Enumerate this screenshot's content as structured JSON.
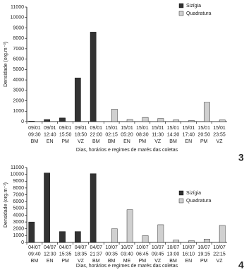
{
  "chart_data": [
    {
      "type": "bar",
      "y_label": "Densidade (org.m⁻³)",
      "x_label": "Dias, horários e regimes de marés das coletas",
      "annotation": "3",
      "categories": [
        [
          "09/01",
          "09:30",
          "BM"
        ],
        [
          "09/01",
          "12:40",
          "EN"
        ],
        [
          "09/01",
          "15:50",
          "PM"
        ],
        [
          "09/01",
          "18:50",
          "VZ"
        ],
        [
          "09/01",
          "22:00",
          "BM"
        ],
        [
          "15/01",
          "02:15",
          "BM"
        ],
        [
          "15/01",
          "05:20",
          "EN"
        ],
        [
          "15/01",
          "08:30",
          "PM"
        ],
        [
          "15/01",
          "11:30",
          "VZ"
        ],
        [
          "15/01",
          "14:30",
          "BM"
        ],
        [
          "15/01",
          "17:40",
          "EN"
        ],
        [
          "15/01",
          "20:50",
          "PM"
        ],
        [
          "15/01",
          "23:55",
          "VZ"
        ]
      ],
      "series": [
        {
          "name": "Sizígia",
          "color": "#333333",
          "values": [
            50,
            200,
            350,
            4200,
            8600,
            null,
            null,
            null,
            null,
            null,
            null,
            null,
            null
          ]
        },
        {
          "name": "Quadratura",
          "color": "#d0d0d0",
          "values": [
            null,
            null,
            null,
            null,
            null,
            1200,
            200,
            400,
            300,
            150,
            100,
            1850,
            150
          ]
        }
      ],
      "ylim": [
        0,
        11000
      ],
      "yticks": [
        0,
        1000,
        2000,
        3000,
        4000,
        5000,
        6000,
        7000,
        8000,
        9000,
        10000,
        11000
      ],
      "legend": "top-right"
    },
    {
      "type": "bar",
      "y_label": "Densidade (org.m⁻³)",
      "x_label": "Dias, horários e regimes de marés das coletas",
      "annotation": "4",
      "categories": [
        [
          "04/07",
          "09:40",
          "BM"
        ],
        [
          "04/07",
          "12:30",
          "EN"
        ],
        [
          "04/07",
          "15:35",
          "PM"
        ],
        [
          "04/07",
          "18:35",
          "VZ"
        ],
        [
          "04/07",
          "21:37",
          "BM"
        ],
        [
          "10/07",
          "00:35",
          "BM"
        ],
        [
          "10/07",
          "03:40",
          "ME"
        ],
        [
          "10/07",
          "06:45",
          "PM"
        ],
        [
          "10/07",
          "09:45",
          "VZ"
        ],
        [
          "10/07",
          "13:00",
          "BM"
        ],
        [
          "10/07",
          "16:10",
          "EN"
        ],
        [
          "10/07",
          "19:15",
          "PM"
        ],
        [
          "10/07",
          "22:15",
          "VZ"
        ]
      ],
      "series": [
        {
          "name": "Sizígia",
          "color": "#333333",
          "values": [
            3000,
            10200,
            1600,
            1600,
            10100,
            null,
            null,
            null,
            null,
            null,
            null,
            null,
            null
          ]
        },
        {
          "name": "Quadratura",
          "color": "#d0d0d0",
          "values": [
            null,
            null,
            null,
            null,
            null,
            2000,
            4800,
            1000,
            2600,
            350,
            250,
            500,
            2500
          ]
        }
      ],
      "ylim": [
        0,
        11000
      ],
      "yticks": [
        0,
        1000,
        2000,
        3000,
        4000,
        5000,
        6000,
        7000,
        8000,
        9000,
        10000,
        11000
      ],
      "legend": "top-right"
    }
  ]
}
